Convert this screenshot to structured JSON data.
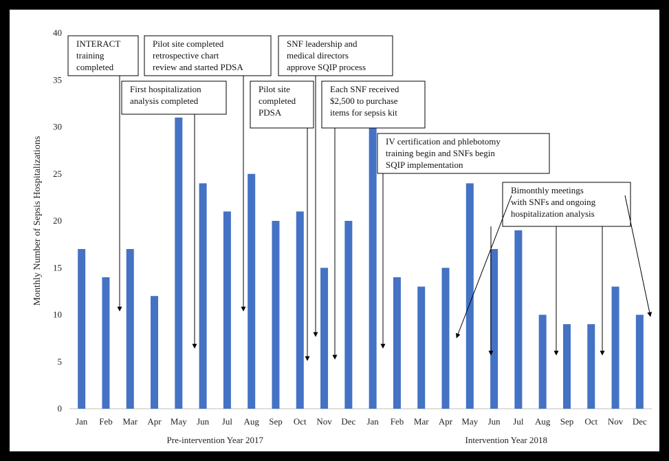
{
  "chart_data": {
    "type": "bar",
    "title": "",
    "ylabel": "Monthly Number of Sepsis Hospitalizations",
    "ylim": [
      0,
      40
    ],
    "yticks": [
      "0",
      "5",
      "10",
      "15",
      "20",
      "25",
      "30",
      "35",
      "40"
    ],
    "color": "#4472C4",
    "grid": false,
    "categories": [
      "Jan",
      "Feb",
      "Mar",
      "Apr",
      "May",
      "Jun",
      "Jul",
      "Aug",
      "Sep",
      "Oct",
      "Nov",
      "Dec",
      "Jan",
      "Feb",
      "Mar",
      "Apr",
      "May",
      "Jun",
      "Jul",
      "Aug",
      "Sep",
      "Oct",
      "Nov",
      "Dec"
    ],
    "values": [
      17,
      14,
      17,
      12,
      31,
      24,
      21,
      25,
      20,
      21,
      15,
      20,
      30,
      14,
      13,
      15,
      24,
      17,
      19,
      10,
      9,
      9,
      13,
      10
    ],
    "groups": [
      {
        "label": "Pre-intervention Year 2017",
        "first": 0,
        "last": 11
      },
      {
        "label": "Intervention Year 2018",
        "first": 12,
        "last": 23
      }
    ],
    "annotations": [
      {
        "lines": [
          "INTERACT",
          "training",
          "completed"
        ]
      },
      {
        "lines": [
          "Pilot site completed",
          "retrospective chart",
          "review and started PDSA"
        ]
      },
      {
        "lines": [
          "SNF leadership and",
          "medical directors",
          "approve SQIP process"
        ]
      },
      {
        "lines": [
          "First hospitalization",
          "analysis completed"
        ]
      },
      {
        "lines": [
          "Pilot site",
          "completed",
          "PDSA"
        ]
      },
      {
        "lines": [
          "Each SNF received",
          "$2,500 to purchase",
          "items for sepsis kit"
        ]
      },
      {
        "lines": [
          "IV certification and phlebotomy",
          "training begin and SNFs begin",
          "SQIP implementation"
        ]
      },
      {
        "lines": [
          "Bimonthly meetings",
          "with SNFs and ongoing",
          "hospitalization analysis"
        ]
      }
    ]
  }
}
